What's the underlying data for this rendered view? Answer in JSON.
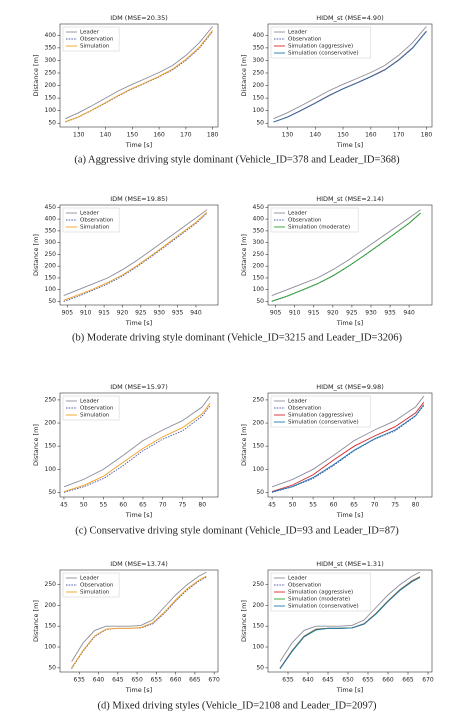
{
  "chart_data": [
    {
      "type": "line",
      "title": "IDM (MSE=20.35)",
      "x_label": "Time [s]",
      "y_label": "Distance [m]",
      "x": [
        125,
        130,
        135,
        140,
        145,
        150,
        155,
        160,
        165,
        170,
        175,
        180
      ],
      "xlim": [
        123,
        182
      ],
      "xticks": [
        130,
        140,
        150,
        160,
        170,
        180
      ],
      "ylim": [
        35,
        445
      ],
      "yticks": [
        50,
        100,
        150,
        200,
        250,
        300,
        350,
        400
      ],
      "legend": "upper left",
      "series": [
        {
          "name": "Leader",
          "color": "#8c8c9c",
          "style": "solid",
          "values": [
            68,
            92,
            120,
            150,
            180,
            205,
            228,
            252,
            280,
            320,
            370,
            435
          ]
        },
        {
          "name": "Observation",
          "color": "#4a55a8",
          "style": "dotted",
          "values": [
            55,
            75,
            102,
            130,
            160,
            187,
            210,
            235,
            262,
            300,
            348,
            415
          ]
        },
        {
          "name": "Simulation",
          "color": "#f0a020",
          "style": "solid",
          "values": [
            56,
            76,
            103,
            132,
            162,
            189,
            212,
            237,
            265,
            305,
            352,
            420
          ]
        }
      ]
    },
    {
      "type": "line",
      "title": "HIDM_st (MSE=4.90)",
      "x_label": "Time [s]",
      "y_label": "Distance [m]",
      "x": [
        125,
        130,
        135,
        140,
        145,
        150,
        155,
        160,
        165,
        170,
        175,
        180
      ],
      "xlim": [
        123,
        182
      ],
      "xticks": [
        130,
        140,
        150,
        160,
        170,
        180
      ],
      "ylim": [
        35,
        445
      ],
      "yticks": [
        50,
        100,
        150,
        200,
        250,
        300,
        350,
        400
      ],
      "legend": "upper left",
      "series": [
        {
          "name": "Leader",
          "color": "#8c8c9c",
          "style": "solid",
          "values": [
            68,
            92,
            120,
            150,
            180,
            205,
            228,
            252,
            280,
            320,
            370,
            435
          ]
        },
        {
          "name": "Observation",
          "color": "#4a55a8",
          "style": "dotted",
          "values": [
            55,
            75,
            102,
            130,
            160,
            187,
            210,
            235,
            262,
            300,
            348,
            415
          ]
        },
        {
          "name": "Simulation (aggressive)",
          "color": "#d62728",
          "style": "solid",
          "values": [
            55,
            75,
            102,
            131,
            161,
            188,
            211,
            236,
            263,
            302,
            350,
            417
          ]
        },
        {
          "name": "Simulation (conservative)",
          "color": "#1f77b4",
          "style": "solid",
          "values": [
            55,
            74,
            101,
            130,
            160,
            187,
            210,
            235,
            262,
            301,
            349,
            416
          ]
        }
      ]
    },
    {
      "type": "line",
      "title": "IDM (MSE=19.85)",
      "x_label": "Time [s]",
      "y_label": "Distance [m]",
      "x": [
        904,
        908,
        912,
        916,
        920,
        924,
        928,
        932,
        936,
        940,
        943
      ],
      "xlim": [
        903,
        946
      ],
      "xticks": [
        905,
        910,
        915,
        920,
        925,
        930,
        935,
        940
      ],
      "ylim": [
        35,
        460
      ],
      "yticks": [
        50,
        100,
        150,
        200,
        250,
        300,
        350,
        400,
        450
      ],
      "legend": "upper left",
      "series": [
        {
          "name": "Leader",
          "color": "#8c8c9c",
          "style": "solid",
          "values": [
            75,
            100,
            125,
            150,
            185,
            225,
            270,
            315,
            360,
            405,
            440
          ]
        },
        {
          "name": "Observation",
          "color": "#4a55a8",
          "style": "dotted",
          "values": [
            50,
            72,
            98,
            125,
            158,
            198,
            242,
            288,
            335,
            382,
            425
          ]
        },
        {
          "name": "Simulation",
          "color": "#f0a020",
          "style": "solid",
          "values": [
            55,
            78,
            103,
            130,
            163,
            203,
            247,
            293,
            340,
            387,
            430
          ]
        }
      ]
    },
    {
      "type": "line",
      "title": "HIDM_st (MSE=2.14)",
      "x_label": "Time [s]",
      "y_label": "Distance [m]",
      "x": [
        904,
        908,
        912,
        916,
        920,
        924,
        928,
        932,
        936,
        940,
        943
      ],
      "xlim": [
        903,
        946
      ],
      "xticks": [
        905,
        910,
        915,
        920,
        925,
        930,
        935,
        940
      ],
      "ylim": [
        35,
        460
      ],
      "yticks": [
        50,
        100,
        150,
        200,
        250,
        300,
        350,
        400,
        450
      ],
      "legend": "upper left",
      "series": [
        {
          "name": "Leader",
          "color": "#8c8c9c",
          "style": "solid",
          "values": [
            75,
            100,
            125,
            150,
            185,
            225,
            270,
            315,
            360,
            405,
            440
          ]
        },
        {
          "name": "Observation",
          "color": "#4a55a8",
          "style": "dotted",
          "values": [
            50,
            72,
            98,
            125,
            158,
            198,
            242,
            288,
            335,
            382,
            425
          ]
        },
        {
          "name": "Simulation (moderate)",
          "color": "#2ca02c",
          "style": "solid",
          "values": [
            51,
            73,
            99,
            126,
            159,
            199,
            243,
            289,
            336,
            383,
            426
          ]
        }
      ]
    },
    {
      "type": "line",
      "title": "IDM (MSE=15.97)",
      "x_label": "Time [s]",
      "y_label": "Distance [m]",
      "x": [
        45,
        50,
        55,
        60,
        65,
        70,
        75,
        80,
        82
      ],
      "xlim": [
        44,
        84
      ],
      "xticks": [
        45,
        50,
        55,
        60,
        65,
        70,
        75,
        80
      ],
      "ylim": [
        40,
        265
      ],
      "yticks": [
        50,
        100,
        150,
        200,
        250
      ],
      "legend": "upper left",
      "series": [
        {
          "name": "Leader",
          "color": "#8c8c9c",
          "style": "solid",
          "values": [
            62,
            78,
            100,
            130,
            162,
            185,
            205,
            235,
            258
          ]
        },
        {
          "name": "Observation",
          "color": "#4a55a8",
          "style": "dotted",
          "values": [
            50,
            62,
            80,
            108,
            140,
            165,
            183,
            215,
            238
          ]
        },
        {
          "name": "Simulation",
          "color": "#f0a020",
          "style": "solid",
          "values": [
            52,
            65,
            85,
            115,
            145,
            170,
            190,
            220,
            243
          ]
        }
      ]
    },
    {
      "type": "line",
      "title": "HIDM_st (MSE=9.98)",
      "x_label": "Time [s]",
      "y_label": "Distance [m]",
      "x": [
        45,
        50,
        55,
        60,
        65,
        70,
        75,
        80,
        82
      ],
      "xlim": [
        44,
        84
      ],
      "xticks": [
        45,
        50,
        55,
        60,
        65,
        70,
        75,
        80
      ],
      "ylim": [
        40,
        265
      ],
      "yticks": [
        50,
        100,
        150,
        200,
        250
      ],
      "legend": "upper left",
      "series": [
        {
          "name": "Leader",
          "color": "#8c8c9c",
          "style": "solid",
          "values": [
            62,
            78,
            100,
            130,
            162,
            185,
            205,
            235,
            258
          ]
        },
        {
          "name": "Observation",
          "color": "#4a55a8",
          "style": "dotted",
          "values": [
            50,
            62,
            80,
            108,
            140,
            165,
            183,
            215,
            238
          ]
        },
        {
          "name": "Simulation (aggressive)",
          "color": "#d62728",
          "style": "solid",
          "values": [
            52,
            66,
            88,
            120,
            150,
            172,
            192,
            222,
            245
          ]
        },
        {
          "name": "Simulation (conservative)",
          "color": "#1f77b4",
          "style": "solid",
          "values": [
            51,
            63,
            82,
            110,
            141,
            166,
            185,
            216,
            240
          ]
        }
      ]
    },
    {
      "type": "line",
      "title": "IDM (MSE=13.74)",
      "x_label": "Time [s]",
      "y_label": "Distance [m]",
      "x": [
        633,
        636,
        639,
        642,
        645,
        648,
        651,
        654,
        657,
        660,
        663,
        666,
        668
      ],
      "xlim": [
        630,
        671
      ],
      "xticks": [
        635,
        640,
        645,
        650,
        655,
        660,
        665,
        670
      ],
      "ylim": [
        40,
        285
      ],
      "yticks": [
        50,
        100,
        150,
        200,
        250
      ],
      "legend": "upper left",
      "series": [
        {
          "name": "Leader",
          "color": "#8c8c9c",
          "style": "solid",
          "values": [
            65,
            110,
            140,
            150,
            150,
            150,
            152,
            165,
            195,
            225,
            250,
            270,
            280
          ]
        },
        {
          "name": "Observation",
          "color": "#4a55a8",
          "style": "dotted",
          "values": [
            48,
            90,
            125,
            142,
            145,
            145,
            146,
            155,
            180,
            210,
            237,
            258,
            268
          ]
        },
        {
          "name": "Simulation",
          "color": "#f0a020",
          "style": "solid",
          "values": [
            50,
            92,
            127,
            143,
            145,
            145,
            147,
            158,
            183,
            213,
            240,
            260,
            270
          ]
        }
      ]
    },
    {
      "type": "line",
      "title": "HIDM_st (MSE=1.31)",
      "x_label": "Time [s]",
      "y_label": "Distance [m]",
      "x": [
        633,
        636,
        639,
        642,
        645,
        648,
        651,
        654,
        657,
        660,
        663,
        666,
        668
      ],
      "xlim": [
        630,
        671
      ],
      "xticks": [
        635,
        640,
        645,
        650,
        655,
        660,
        665,
        670
      ],
      "ylim": [
        40,
        285
      ],
      "yticks": [
        50,
        100,
        150,
        200,
        250
      ],
      "legend": "upper left",
      "series": [
        {
          "name": "Leader",
          "color": "#8c8c9c",
          "style": "solid",
          "values": [
            65,
            110,
            140,
            150,
            150,
            150,
            152,
            165,
            195,
            225,
            250,
            270,
            280
          ]
        },
        {
          "name": "Observation",
          "color": "#4a55a8",
          "style": "dotted",
          "values": [
            48,
            90,
            125,
            142,
            145,
            145,
            146,
            155,
            180,
            210,
            237,
            258,
            268
          ]
        },
        {
          "name": "Simulation (aggressive)",
          "color": "#d62728",
          "style": "solid",
          "values": [
            49,
            91,
            126,
            143,
            145,
            145,
            146,
            156,
            181,
            211,
            238,
            259,
            269
          ]
        },
        {
          "name": "Simulation (moderate)",
          "color": "#2ca02c",
          "style": "solid",
          "values": [
            48,
            90,
            125,
            142,
            145,
            145,
            146,
            155,
            180,
            210,
            237,
            258,
            268
          ]
        },
        {
          "name": "Simulation (conservative)",
          "color": "#1f77b4",
          "style": "solid",
          "values": [
            48,
            89,
            124,
            141,
            145,
            145,
            146,
            155,
            179,
            209,
            236,
            257,
            267
          ]
        }
      ]
    }
  ],
  "captions": [
    "(a)  Aggressive driving style dominant (Vehicle_ID=378 and Leader_ID=368)",
    "(b)  Moderate driving style dominant (Vehicle_ID=3215 and Leader_ID=3206)",
    "(c)  Conservative driving style dominant (Vehicle_ID=93 and Leader_ID=87)",
    "(d)  Mixed driving styles (Vehicle_ID=2108 and Leader_ID=2097)"
  ]
}
